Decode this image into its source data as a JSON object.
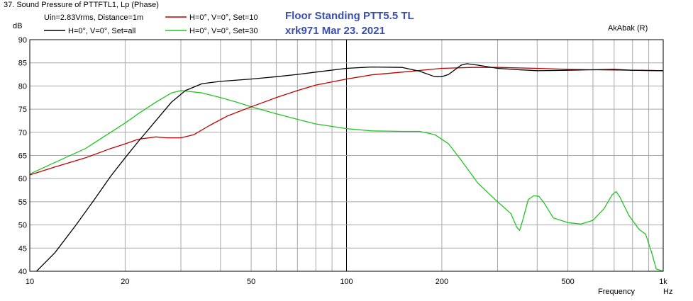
{
  "chart_data": {
    "type": "line",
    "header": "37. Sound Pressure of PTTFTL1, Lp (Phase)",
    "overlay_title": "Floor Standing PTT5.5 TL",
    "overlay_subtitle": "xrk971   Mar 23. 2021",
    "software": "AkAbak (R)",
    "ylabel": "dB",
    "xlabel": "Frequency",
    "xunit": "Hz",
    "x_scale": "log",
    "xlim": [
      10,
      1000
    ],
    "ylim": [
      40,
      90
    ],
    "grid": true,
    "y_ticks": [
      40,
      45,
      50,
      55,
      60,
      65,
      70,
      75,
      80,
      85,
      90
    ],
    "x_tick_values": [
      10,
      20,
      50,
      100,
      200,
      500,
      1000
    ],
    "x_tick_labels": [
      "10",
      "20",
      "50",
      "100",
      "200",
      "500",
      "1k"
    ],
    "legend_entries": [
      {
        "label": "Uin=2.83Vrms, Distance=1m",
        "color": "",
        "series": null
      },
      {
        "label": "H=0°, V=0°, Set=10",
        "color": "#c00000",
        "series": 1
      },
      {
        "label": "H=0°, V=0°, Set=all",
        "color": "#000000",
        "series": 0
      },
      {
        "label": "H=0°, V=0°, Set=30",
        "color": "#22c422",
        "series": 2
      }
    ],
    "series": [
      {
        "name": "H=0°, V=0°, Set=all",
        "color": "#000000",
        "points": [
          [
            10.5,
            40
          ],
          [
            12,
            44
          ],
          [
            14,
            50
          ],
          [
            16,
            55.5
          ],
          [
            18,
            60.5
          ],
          [
            20,
            64.5
          ],
          [
            22,
            68
          ],
          [
            25,
            72.5
          ],
          [
            28,
            76.5
          ],
          [
            31,
            79
          ],
          [
            35,
            80.5
          ],
          [
            40,
            81
          ],
          [
            50,
            81.5
          ],
          [
            60,
            82
          ],
          [
            70,
            82.5
          ],
          [
            80,
            83
          ],
          [
            100,
            83.8
          ],
          [
            120,
            84.1
          ],
          [
            150,
            84
          ],
          [
            170,
            83.2
          ],
          [
            190,
            82
          ],
          [
            200,
            82
          ],
          [
            210,
            82.5
          ],
          [
            230,
            84.5
          ],
          [
            240,
            84.8
          ],
          [
            260,
            84.5
          ],
          [
            300,
            83.8
          ],
          [
            350,
            83.5
          ],
          [
            400,
            83.3
          ],
          [
            500,
            83.4
          ],
          [
            600,
            83.5
          ],
          [
            700,
            83.6
          ],
          [
            800,
            83.4
          ],
          [
            1000,
            83.3
          ]
        ]
      },
      {
        "name": "H=0°, V=0°, Set=10",
        "color": "#c00000",
        "points": [
          [
            10,
            60.8
          ],
          [
            12,
            62.5
          ],
          [
            15,
            64.5
          ],
          [
            18,
            66.5
          ],
          [
            20,
            67.5
          ],
          [
            22,
            68.5
          ],
          [
            25,
            69
          ],
          [
            27,
            68.8
          ],
          [
            30,
            68.8
          ],
          [
            33,
            69.5
          ],
          [
            37,
            71.5
          ],
          [
            42,
            73.5
          ],
          [
            50,
            75.5
          ],
          [
            60,
            77.5
          ],
          [
            70,
            79
          ],
          [
            80,
            80.2
          ],
          [
            100,
            81.5
          ],
          [
            120,
            82.4
          ],
          [
            150,
            83
          ],
          [
            200,
            83.8
          ],
          [
            250,
            84
          ],
          [
            300,
            84
          ],
          [
            400,
            83.8
          ],
          [
            500,
            83.6
          ],
          [
            600,
            83.5
          ],
          [
            800,
            83.4
          ],
          [
            1000,
            83.3
          ]
        ]
      },
      {
        "name": "H=0°, V=0°, Set=30",
        "color": "#22c422",
        "points": [
          [
            10,
            61
          ],
          [
            12,
            63.5
          ],
          [
            15,
            66.5
          ],
          [
            18,
            70
          ],
          [
            20,
            72
          ],
          [
            22,
            74
          ],
          [
            25,
            76.5
          ],
          [
            28,
            78.5
          ],
          [
            30,
            79
          ],
          [
            35,
            78.5
          ],
          [
            40,
            77.5
          ],
          [
            45,
            76.5
          ],
          [
            50,
            75.5
          ],
          [
            60,
            74
          ],
          [
            70,
            72.8
          ],
          [
            80,
            71.8
          ],
          [
            100,
            70.8
          ],
          [
            120,
            70.3
          ],
          [
            150,
            70.2
          ],
          [
            170,
            70.2
          ],
          [
            190,
            69.5
          ],
          [
            210,
            67.5
          ],
          [
            230,
            64
          ],
          [
            260,
            59
          ],
          [
            300,
            55
          ],
          [
            330,
            52.5
          ],
          [
            345,
            49.5
          ],
          [
            352,
            48.8
          ],
          [
            360,
            51
          ],
          [
            375,
            55.5
          ],
          [
            390,
            56.3
          ],
          [
            405,
            56.2
          ],
          [
            420,
            54.8
          ],
          [
            450,
            51.5
          ],
          [
            500,
            50.5
          ],
          [
            550,
            50.2
          ],
          [
            600,
            51
          ],
          [
            650,
            53.5
          ],
          [
            690,
            56.5
          ],
          [
            710,
            57.2
          ],
          [
            730,
            56
          ],
          [
            780,
            52
          ],
          [
            840,
            49
          ],
          [
            880,
            48
          ],
          [
            920,
            44
          ],
          [
            950,
            40.5
          ],
          [
            1000,
            40
          ]
        ]
      }
    ]
  }
}
